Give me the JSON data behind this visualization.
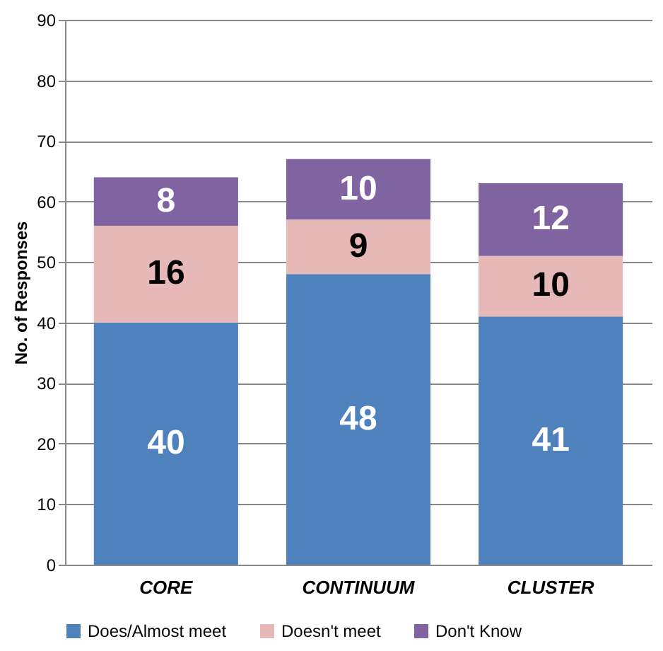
{
  "chart_data": {
    "type": "bar",
    "stacked": true,
    "ylabel": "No. of Responses",
    "categories": [
      "CORE",
      "CONTINUUM",
      "CLUSTER"
    ],
    "series": [
      {
        "name": "Does/Almost meet",
        "color": "#4f81bd",
        "values": [
          40,
          48,
          41
        ]
      },
      {
        "name": "Doesn't meet",
        "color": "#e6b9b8",
        "values": [
          16,
          9,
          10
        ]
      },
      {
        "name": "Don't Know",
        "color": "#8064a2",
        "values": [
          8,
          10,
          12
        ]
      }
    ],
    "ylim": [
      0,
      90
    ],
    "yticks": [
      0,
      10,
      20,
      30,
      40,
      50,
      60,
      70,
      80,
      90
    ],
    "grid": "y",
    "legend": "bottom",
    "data_labels": true
  }
}
